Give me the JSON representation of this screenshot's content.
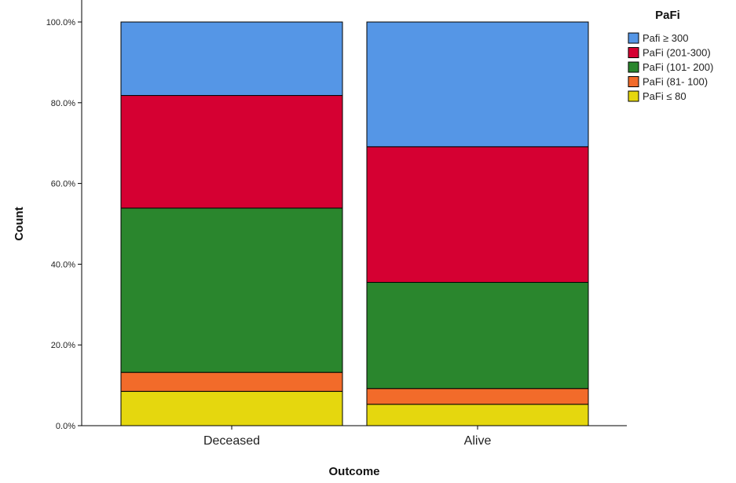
{
  "chart_data": {
    "type": "bar",
    "stacked": true,
    "percent": true,
    "categories": [
      "Deceased",
      "Alive"
    ],
    "xlabel": "Outcome",
    "ylabel": "Count",
    "ylim": [
      0,
      100
    ],
    "yticks": [
      0,
      20,
      40,
      60,
      80,
      100
    ],
    "ytick_labels": [
      "0.0%",
      "20.0%",
      "40.0%",
      "60.0%",
      "80.0%",
      "100.0%"
    ],
    "legend_title": "PaFi",
    "legend_position": "top-right",
    "grid": false,
    "series": [
      {
        "name": "PaFi ≤ 80",
        "color": "#e5d70e",
        "values": [
          8.5,
          5.3
        ]
      },
      {
        "name": "PaFi (81- 100)",
        "color": "#f26b2a",
        "values": [
          4.7,
          3.9
        ]
      },
      {
        "name": "PaFi (101- 200)",
        "color": "#2a862d",
        "values": [
          40.7,
          26.3
        ]
      },
      {
        "name": "PaFi (201-300)",
        "color": "#d50032",
        "values": [
          27.9,
          33.6
        ]
      },
      {
        "name": "Pafi ≥ 300",
        "color": "#5596e6",
        "values": [
          18.2,
          30.9
        ]
      }
    ],
    "legend_order": [
      4,
      3,
      2,
      1,
      0
    ]
  }
}
